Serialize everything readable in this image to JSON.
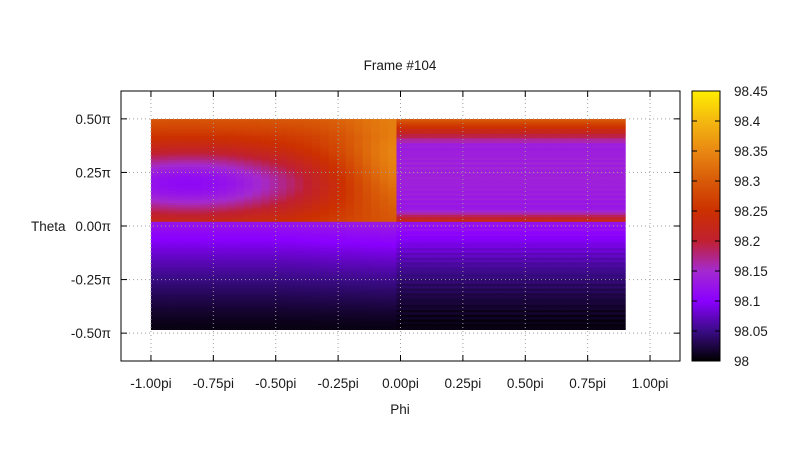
{
  "chart_data": {
    "type": "heatmap",
    "title": "Frame #104",
    "xlabel": "Phi",
    "ylabel": "Theta",
    "x_ticks": [
      {
        "value": -1.0,
        "label": "-1.00pi"
      },
      {
        "value": -0.75,
        "label": "-0.75pi"
      },
      {
        "value": -0.5,
        "label": "-0.50pi"
      },
      {
        "value": -0.25,
        "label": "-0.25pi"
      },
      {
        "value": 0.0,
        "label": "0.00pi"
      },
      {
        "value": 0.25,
        "label": "0.25pi"
      },
      {
        "value": 0.5,
        "label": "0.50pi"
      },
      {
        "value": 0.75,
        "label": "0.75pi"
      },
      {
        "value": 1.0,
        "label": "1.00pi"
      }
    ],
    "y_ticks": [
      {
        "value": 0.5,
        "label": "0.50π"
      },
      {
        "value": 0.25,
        "label": "0.25π"
      },
      {
        "value": 0.0,
        "label": "0.00π"
      },
      {
        "value": -0.25,
        "label": "-0.25π"
      },
      {
        "value": -0.5,
        "label": "-0.50π"
      }
    ],
    "xlim": [
      -1.12,
      1.12
    ],
    "ylim": [
      -0.63,
      0.63
    ],
    "data_extent": {
      "x": [
        -1.0,
        0.9
      ],
      "y": [
        -0.5,
        0.5
      ]
    },
    "grid": true,
    "colorbar": {
      "range": [
        98.0,
        98.45
      ],
      "ticks": [
        98,
        98.05,
        98.1,
        98.15,
        98.2,
        98.25,
        98.3,
        98.35,
        98.4,
        98.45
      ],
      "colors": [
        {
          "value": 98.0,
          "color": "#000000"
        },
        {
          "value": 98.05,
          "color": "#3a0b86"
        },
        {
          "value": 98.1,
          "color": "#8a00ff"
        },
        {
          "value": 98.15,
          "color": "#a42ad0"
        },
        {
          "value": 98.2,
          "color": "#c02030"
        },
        {
          "value": 98.25,
          "color": "#cc3000"
        },
        {
          "value": 98.3,
          "color": "#d85a08"
        },
        {
          "value": 98.35,
          "color": "#e98812"
        },
        {
          "value": 98.4,
          "color": "#f4b810"
        },
        {
          "value": 98.45,
          "color": "#ffee00"
        }
      ]
    }
  }
}
